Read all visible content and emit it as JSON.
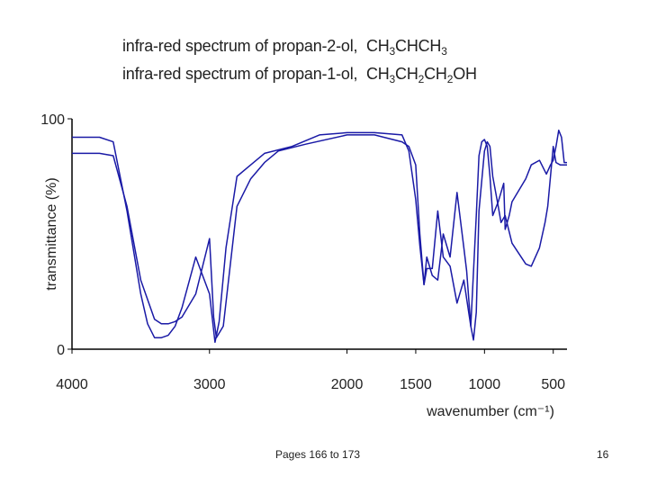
{
  "titles": {
    "spectrum_a": {
      "prefix": "infra-red spectrum of propan-2-ol,",
      "formula_parts": [
        "CH",
        "3",
        "CHCH",
        "3"
      ]
    },
    "spectrum_b": {
      "prefix": "infra-red spectrum of propan-1-ol,",
      "formula_parts": [
        "CH",
        "3",
        "CH",
        "2",
        "CH",
        "2",
        "OH"
      ]
    }
  },
  "footer": {
    "pages": "Pages 166 to 173",
    "page_number": "16"
  },
  "colors": {
    "series_line": "#1a1aa6",
    "axis": "#000000",
    "text": "#222222"
  },
  "chart_data": {
    "type": "line",
    "title": "",
    "xlabel": "wavenumber (cm⁻¹)",
    "ylabel": "transmittance (%)",
    "xlim": [
      4000,
      400
    ],
    "ylim": [
      0,
      100
    ],
    "x_reversed": true,
    "x_ticks": [
      4000,
      3000,
      2000,
      1500,
      1000,
      500
    ],
    "y_ticks": [
      0,
      100
    ],
    "grid": false,
    "legend": "none",
    "series": [
      {
        "x": [
          4000,
          3800,
          3700,
          3600,
          3500,
          3400,
          3350,
          3300,
          3250,
          3200,
          3100,
          3000,
          2970,
          2950,
          2900,
          2800,
          2700,
          2600,
          2500,
          2300,
          2000,
          1800,
          1600,
          1550,
          1500,
          1470,
          1440,
          1420,
          1380,
          1340,
          1300,
          1250,
          1200,
          1150,
          1130,
          1100,
          1060,
          1040,
          1020,
          1000,
          980,
          960,
          940,
          900,
          860,
          850,
          820,
          800,
          700,
          660,
          600,
          550,
          520,
          500,
          480,
          460,
          440,
          420,
          400
        ],
        "y": [
          85,
          85,
          84,
          62,
          30,
          13,
          11,
          11,
          12,
          14,
          24,
          48,
          14,
          5,
          10,
          62,
          74,
          81,
          86,
          89,
          93,
          93,
          90,
          88,
          80,
          50,
          28,
          40,
          32,
          30,
          50,
          40,
          68,
          44,
          34,
          10,
          58,
          84,
          90,
          91,
          88,
          75,
          58,
          64,
          72,
          52,
          58,
          64,
          74,
          80,
          82,
          76,
          80,
          82,
          88,
          95,
          92,
          81,
          81
        ]
      },
      {
        "x": [
          4000,
          3800,
          3700,
          3600,
          3500,
          3450,
          3400,
          3350,
          3300,
          3250,
          3200,
          3100,
          3000,
          2960,
          2930,
          2880,
          2800,
          2700,
          2600,
          2400,
          2200,
          2000,
          1800,
          1600,
          1550,
          1500,
          1470,
          1440,
          1420,
          1380,
          1340,
          1300,
          1250,
          1200,
          1150,
          1120,
          1100,
          1080,
          1060,
          1050,
          1040,
          1000,
          980,
          960,
          940,
          900,
          880,
          850,
          800,
          700,
          660,
          600,
          560,
          540,
          500,
          480,
          450,
          420,
          400
        ],
        "y": [
          92,
          92,
          90,
          60,
          24,
          11,
          5,
          5,
          6,
          10,
          18,
          40,
          24,
          3,
          12,
          44,
          75,
          80,
          85,
          88,
          93,
          94,
          94,
          93,
          86,
          65,
          45,
          28,
          35,
          35,
          60,
          40,
          36,
          20,
          30,
          18,
          10,
          4,
          16,
          38,
          60,
          86,
          90,
          88,
          75,
          62,
          55,
          58,
          46,
          37,
          36,
          44,
          55,
          62,
          88,
          81,
          80,
          80,
          80
        ]
      }
    ]
  }
}
